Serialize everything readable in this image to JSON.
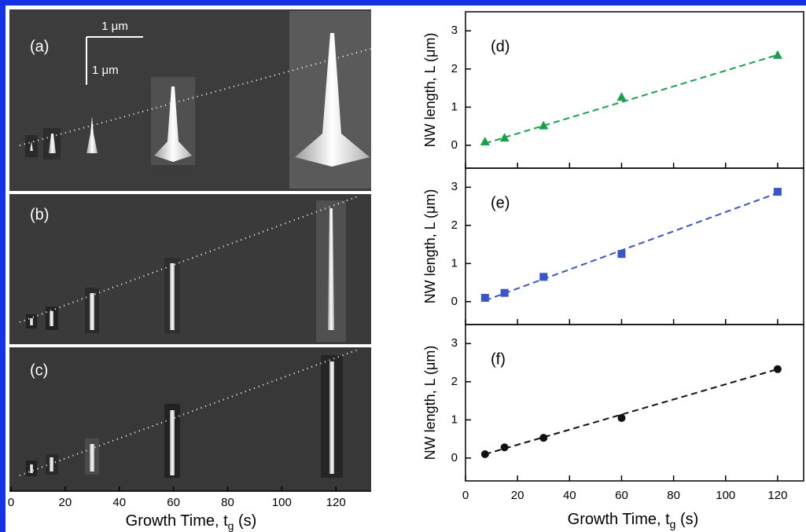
{
  "sem_panel": {
    "panels": [
      {
        "label": "(a)"
      },
      {
        "label": "(b)"
      },
      {
        "label": "(c)"
      }
    ],
    "scale_bars": [
      "1 μm",
      "1 μm"
    ],
    "xlim": [
      0,
      133
    ],
    "xticks": [
      0,
      20,
      40,
      60,
      80,
      100,
      120
    ],
    "xlabel": [
      "Growth Time, t",
      "g",
      " (s)"
    ]
  },
  "chart_data": [
    {
      "type": "scatter",
      "label": "(d)",
      "ylabel": "NW length, L (μm)",
      "x": [
        7.5,
        15,
        30,
        60,
        120
      ],
      "series": [
        {
          "color": "#1aa04a",
          "marker": "triangle",
          "values": [
            0.1,
            0.2,
            0.52,
            1.27,
            2.37
          ]
        }
      ],
      "fit": {
        "x": [
          7.5,
          120
        ],
        "values": [
          0.05,
          2.37
        ]
      },
      "xlim": [
        0,
        130
      ],
      "xticks": [
        0,
        20,
        40,
        60,
        80,
        100,
        120
      ],
      "ylim": [
        -0.6,
        3.5
      ],
      "yticks": [
        0,
        1,
        2,
        3
      ]
    },
    {
      "type": "scatter",
      "label": "(e)",
      "ylabel": "NW length, L (μm)",
      "x": [
        7.5,
        15,
        30,
        60,
        120
      ],
      "series": [
        {
          "color": "#3b55c4",
          "marker": "square",
          "values": [
            0.1,
            0.23,
            0.65,
            1.25,
            2.88
          ]
        }
      ],
      "fit": {
        "x": [
          7.5,
          120
        ],
        "values": [
          0.03,
          2.85
        ]
      },
      "xlim": [
        0,
        130
      ],
      "xticks": [
        0,
        20,
        40,
        60,
        80,
        100,
        120
      ],
      "ylim": [
        -0.6,
        3.5
      ],
      "yticks": [
        0,
        1,
        2,
        3
      ]
    },
    {
      "type": "scatter",
      "label": "(f)",
      "ylabel": "NW length, L (μm)",
      "x": [
        7.5,
        15,
        30,
        60,
        120
      ],
      "series": [
        {
          "color": "#111111",
          "marker": "circle",
          "values": [
            0.1,
            0.28,
            0.53,
            1.05,
            2.33
          ]
        }
      ],
      "fit": {
        "x": [
          7.5,
          120
        ],
        "values": [
          0.1,
          2.33
        ]
      },
      "xlim": [
        0,
        130
      ],
      "xticks": [
        0,
        20,
        40,
        60,
        80,
        100,
        120
      ],
      "ylim": [
        -0.6,
        3.5
      ],
      "yticks": [
        0,
        1,
        2,
        3
      ],
      "xlabel": [
        "Growth Time, t",
        "g",
        " (s)"
      ]
    }
  ]
}
